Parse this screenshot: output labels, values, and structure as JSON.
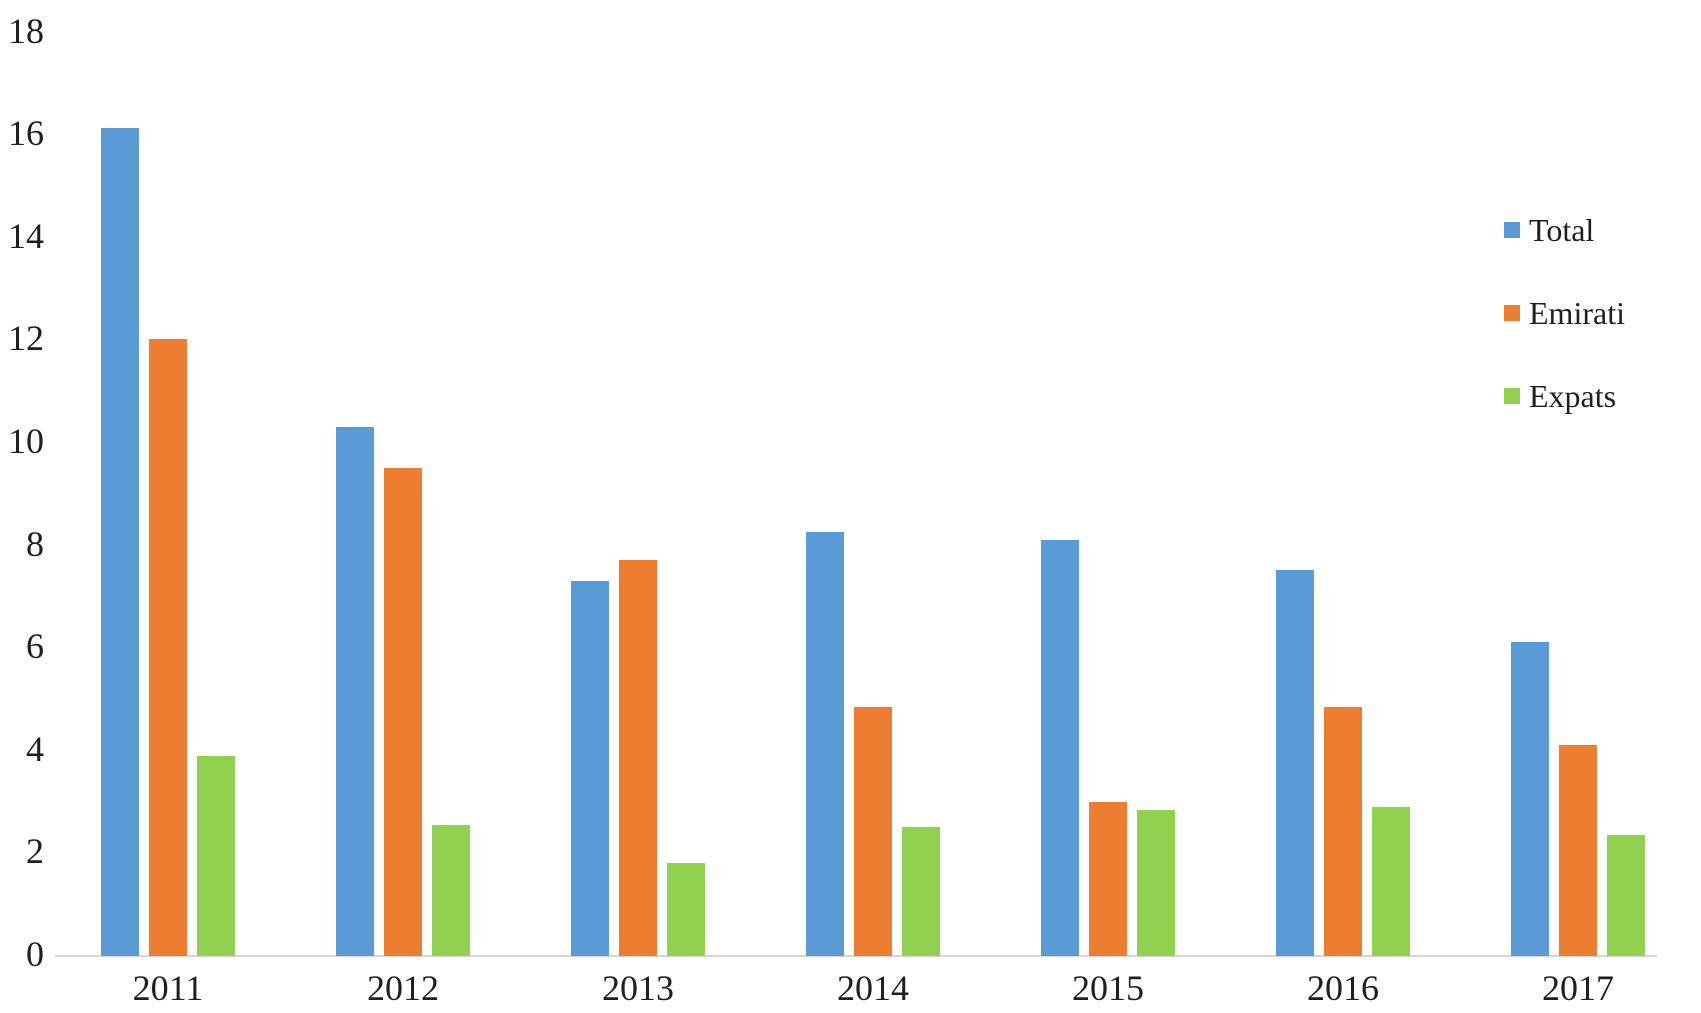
{
  "chart_data": {
    "type": "bar",
    "title": "",
    "xlabel": "",
    "ylabel": "",
    "categories": [
      "2011",
      "2012",
      "2013",
      "2014",
      "2015",
      "2016",
      "2017"
    ],
    "series": [
      {
        "name": "Total",
        "color": "#5B9BD5",
        "values": [
          16.1,
          10.3,
          7.3,
          8.25,
          8.1,
          7.5,
          6.1
        ]
      },
      {
        "name": "Emirati",
        "color": "#ED7D31",
        "values": [
          12.0,
          9.5,
          7.7,
          4.85,
          3.0,
          4.85,
          4.1
        ]
      },
      {
        "name": "Expats",
        "color": "#92D050",
        "values": [
          3.9,
          2.55,
          1.8,
          2.5,
          2.85,
          2.9,
          2.35
        ]
      }
    ],
    "ylim": [
      0,
      18
    ],
    "yticks": [
      0,
      2,
      4,
      6,
      8,
      10,
      12,
      14,
      16,
      18
    ],
    "grid": false,
    "legend_position": "right",
    "colors": {
      "background": "#ffffff",
      "axis_line": "#d6d6d6",
      "text": "#1f1f1f"
    }
  }
}
